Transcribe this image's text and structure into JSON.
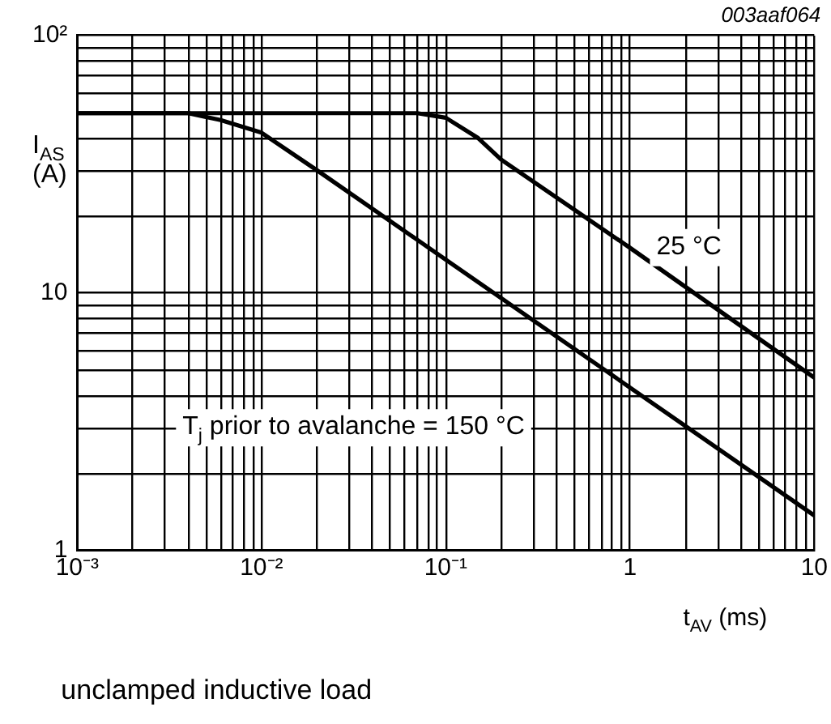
{
  "chart_data": {
    "type": "line",
    "ylabel": "I$_{AS}$\n(A)",
    "xlabel": "t$_{AV}$ (ms)",
    "log": "xy",
    "grid": true,
    "legend": false,
    "marker": "none",
    "line_style": "solid",
    "xlim": [
      0.001,
      10
    ],
    "ylim": [
      1,
      100
    ],
    "xticks": [
      {
        "value": 0.001,
        "label": "10⁻³"
      },
      {
        "value": 0.002,
        "label": null
      },
      {
        "value": 0.003,
        "label": null
      },
      {
        "value": 0.004,
        "label": null
      },
      {
        "value": 0.005,
        "label": null
      },
      {
        "value": 0.006,
        "label": null
      },
      {
        "value": 0.007,
        "label": null
      },
      {
        "value": 0.008,
        "label": null
      },
      {
        "value": 0.009,
        "label": null
      },
      {
        "value": 0.01,
        "label": "10⁻²"
      },
      {
        "value": 0.02,
        "label": null
      },
      {
        "value": 0.03,
        "label": null
      },
      {
        "value": 0.04,
        "label": null
      },
      {
        "value": 0.05,
        "label": null
      },
      {
        "value": 0.06,
        "label": null
      },
      {
        "value": 0.07,
        "label": null
      },
      {
        "value": 0.08,
        "label": null
      },
      {
        "value": 0.09,
        "label": null
      },
      {
        "value": 0.1,
        "label": "10⁻¹"
      },
      {
        "value": 0.2,
        "label": null
      },
      {
        "value": 0.3,
        "label": null
      },
      {
        "value": 0.4,
        "label": null
      },
      {
        "value": 0.5,
        "label": null
      },
      {
        "value": 0.6,
        "label": null
      },
      {
        "value": 0.7,
        "label": null
      },
      {
        "value": 0.8,
        "label": null
      },
      {
        "value": 0.9,
        "label": null
      },
      1,
      {
        "value": 2,
        "label": null
      },
      {
        "value": 3,
        "label": null
      },
      {
        "value": 4,
        "label": null
      },
      {
        "value": 5,
        "label": null
      },
      {
        "value": 6,
        "label": null
      },
      {
        "value": 7,
        "label": null
      },
      {
        "value": 8,
        "label": null
      },
      {
        "value": 9,
        "label": null
      },
      10
    ],
    "yticks": [
      1,
      {
        "value": 2,
        "label": null
      },
      {
        "value": 3,
        "label": null
      },
      {
        "value": 4,
        "label": null
      },
      {
        "value": 5,
        "label": null
      },
      {
        "value": 6,
        "label": null
      },
      {
        "value": 7,
        "label": null
      },
      {
        "value": 8,
        "label": null
      },
      {
        "value": 9,
        "label": null
      },
      10,
      {
        "value": 20,
        "label": null
      },
      {
        "value": 30,
        "label": null
      },
      {
        "value": 40,
        "label": null
      },
      {
        "value": 50,
        "label": null
      },
      {
        "value": 60,
        "label": null
      },
      {
        "value": 70,
        "label": null
      },
      {
        "value": 80,
        "label": null
      },
      {
        "value": 90,
        "label": null
      },
      {
        "value": 100,
        "label": "10²"
      }
    ],
    "series": [
      {
        "color": "#000000",
        "x": [
          0.001,
          0.004,
          0.006,
          0.01,
          0.02,
          0.1,
          1,
          10
        ],
        "values": [
          50,
          50,
          47,
          42,
          30,
          13.5,
          4.3,
          1.37
        ]
      },
      {
        "color": "#000000",
        "x": [
          0.001,
          0.07,
          0.1,
          0.15,
          0.2,
          1,
          10
        ],
        "values": [
          50,
          50,
          48,
          40,
          33,
          15,
          4.7
        ]
      }
    ],
    "annotations": [
      "003aaf064",
      "25 °C",
      "T$_{j}$ prior to avalanche = 150 °C",
      "unclamped inductive load"
    ]
  }
}
